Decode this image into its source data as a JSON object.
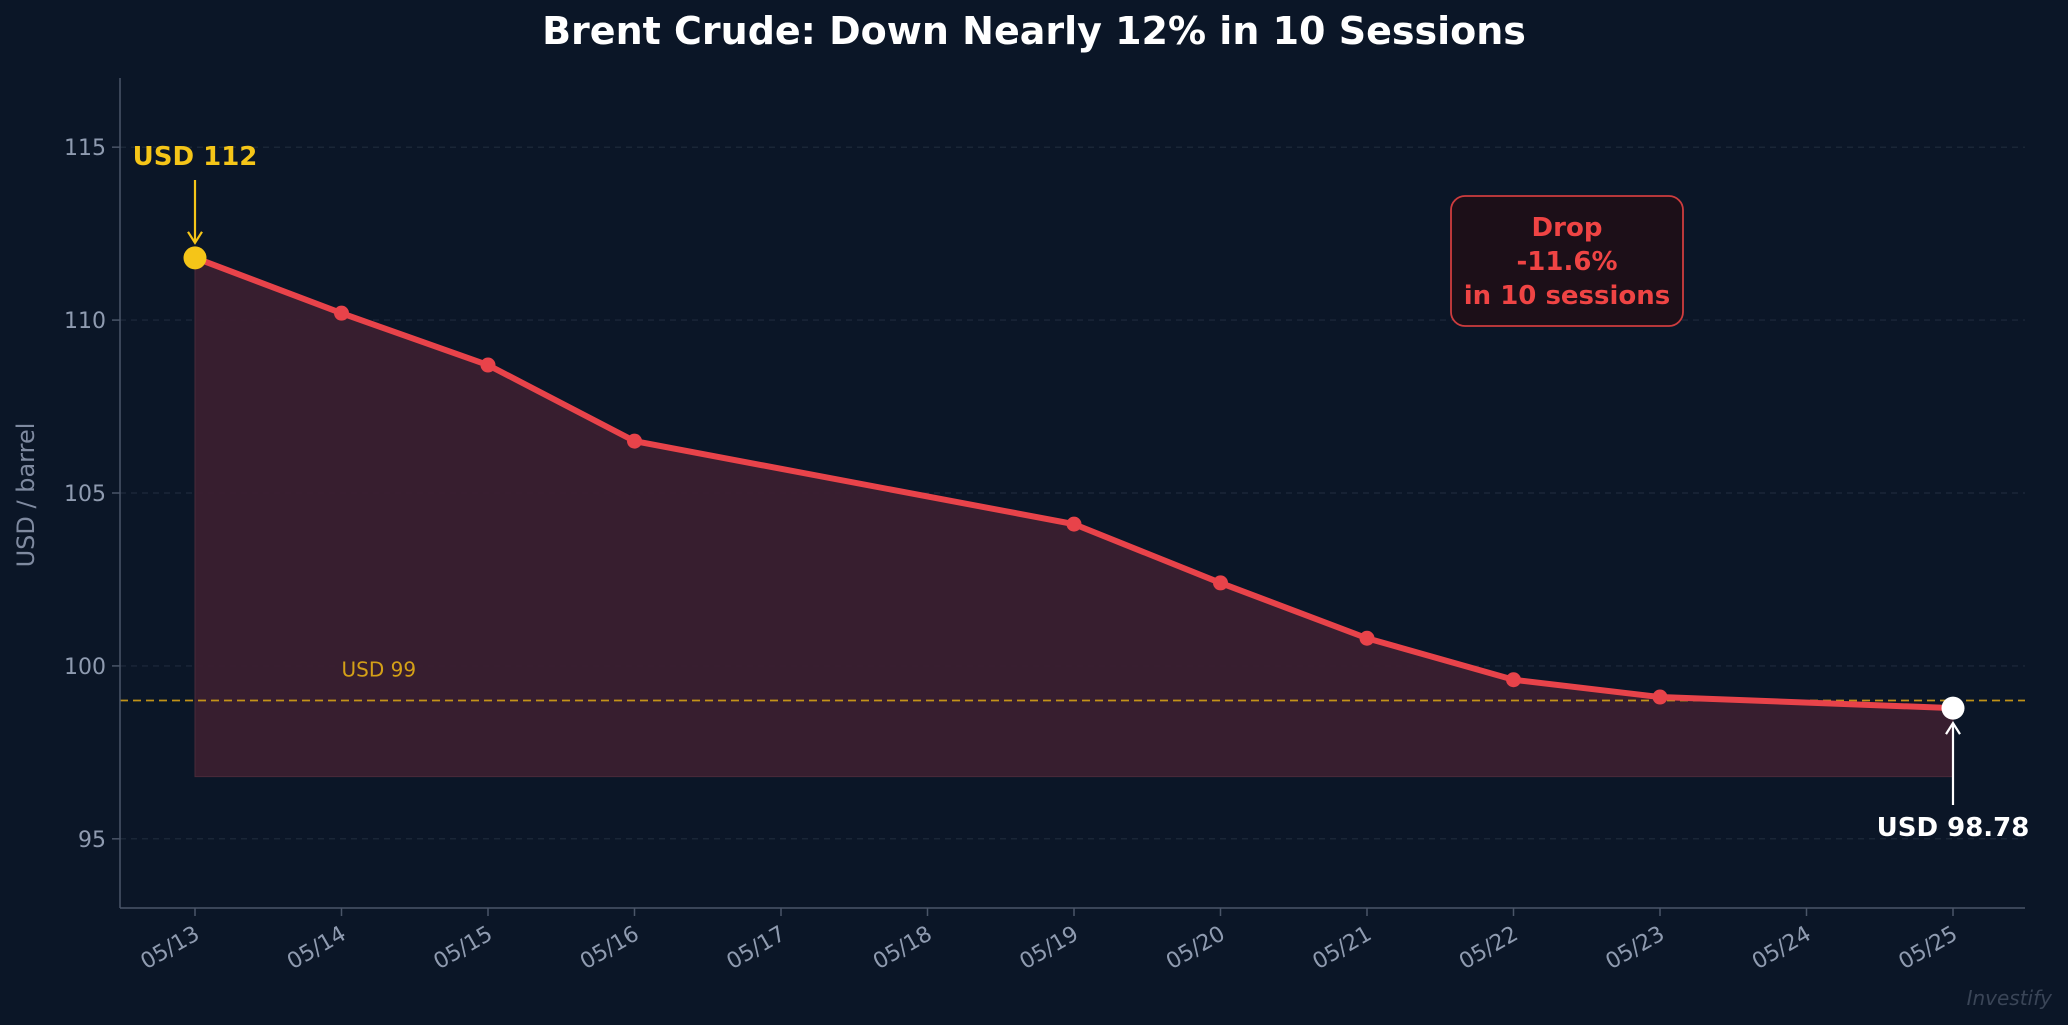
{
  "chart_data": {
    "type": "line",
    "title": "Brent Crude: Down Nearly 12% in 10 Sessions",
    "ylabel": "USD / barrel",
    "xlabel": "",
    "ylim": [
      93,
      117
    ],
    "yticks": [
      95,
      100,
      105,
      110,
      115
    ],
    "grid": "horizontal-dashed",
    "x_tick_labels": [
      "05/13",
      "05/14",
      "05/15",
      "05/16",
      "05/17",
      "05/18",
      "05/19",
      "05/20",
      "05/21",
      "05/22",
      "05/23",
      "05/24",
      "05/25"
    ],
    "x": [
      "05/13",
      "05/14",
      "05/15",
      "05/16",
      "05/19",
      "05/20",
      "05/21",
      "05/22",
      "05/23",
      "05/25"
    ],
    "series": [
      {
        "values": [
          111.8,
          110.2,
          108.7,
          106.5,
          104.1,
          102.4,
          100.8,
          99.6,
          99.1,
          98.78
        ],
        "color": "#e8434a"
      }
    ],
    "reference_line": {
      "value": 99,
      "label": "USD 99",
      "color": "#d4a017"
    },
    "annotations": {
      "start": {
        "text": "USD 112",
        "color": "#f5c518"
      },
      "end": {
        "text": "USD 98.78",
        "color": "#ffffff"
      },
      "drop_box": {
        "lines": [
          "Drop",
          "-11.6%",
          "in 10 sessions"
        ],
        "color": "#ef4444"
      }
    },
    "fill_baseline": 96.8
  },
  "watermark": "Investify"
}
